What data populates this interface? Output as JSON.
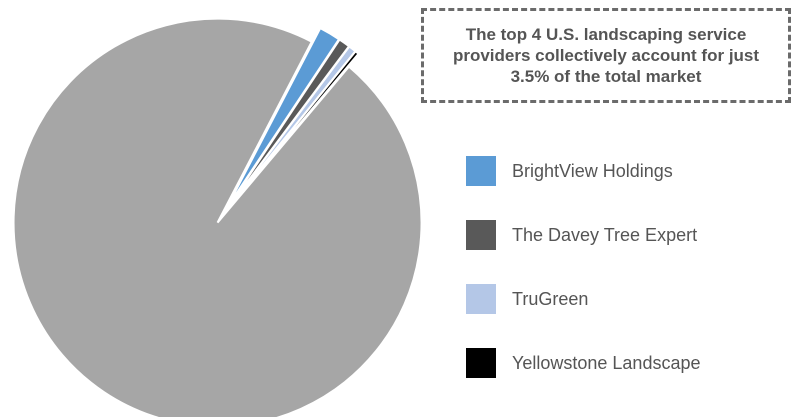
{
  "chart_data": {
    "type": "pie",
    "slices": [
      {
        "name": "BrightView Holdings",
        "value": 1.7,
        "color": "#5b9bd5"
      },
      {
        "name": "The Davey Tree Expert",
        "value": 0.9,
        "color": "#595959"
      },
      {
        "name": "TruGreen",
        "value": 0.6,
        "color": "#b4c7e7"
      },
      {
        "name": "Yellowstone Landscape",
        "value": 0.3,
        "color": "#000000"
      },
      {
        "name": "",
        "value": 96.5,
        "color": "#a6a6a6"
      }
    ],
    "annotation": "The top 4 U.S. landscaping service providers collectively account for just 3.5% of the total market",
    "legend_position": "right"
  }
}
